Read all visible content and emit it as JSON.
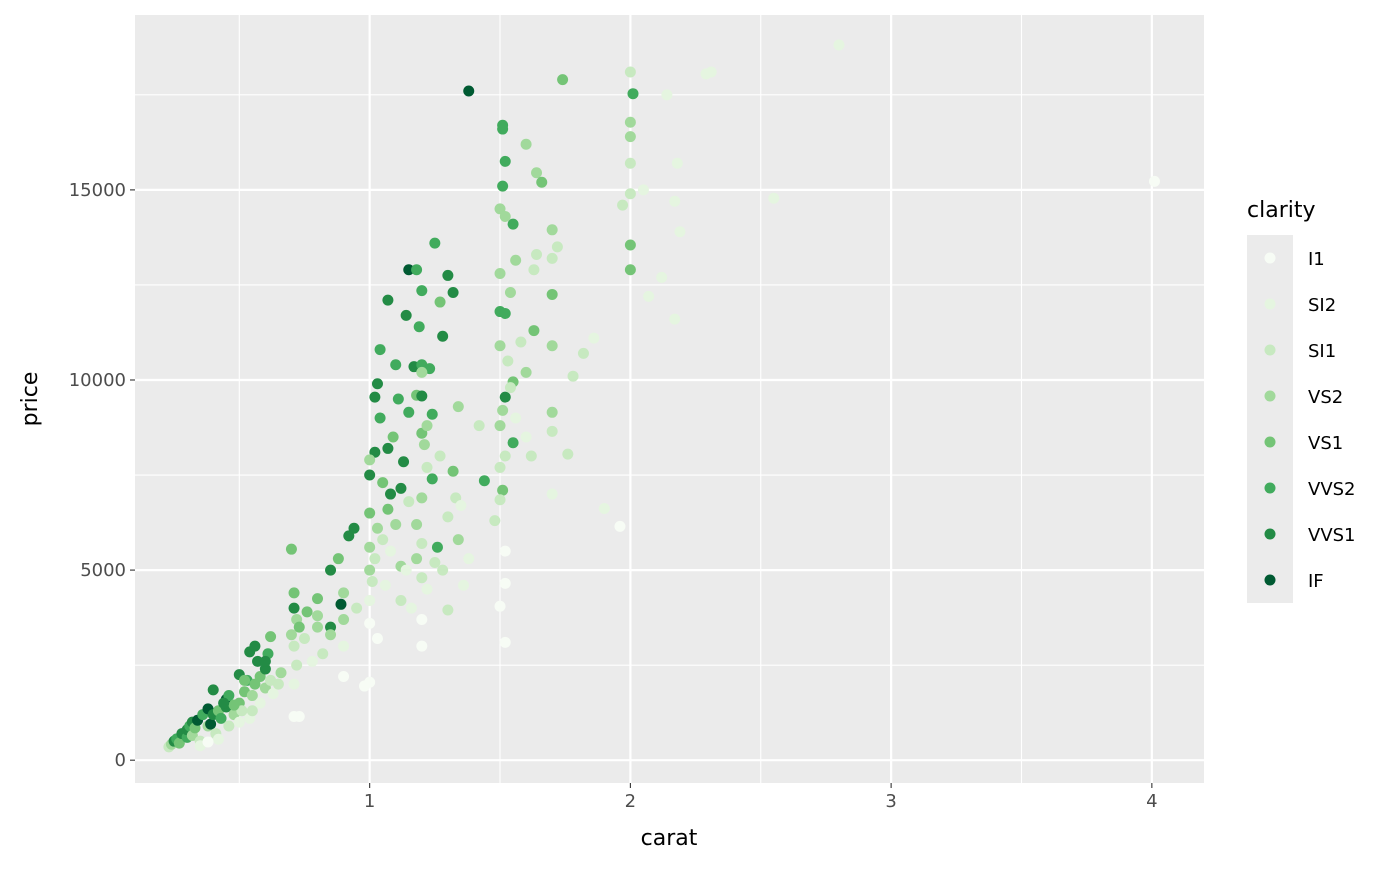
{
  "chart_data": {
    "type": "scatter",
    "xlabel": "carat",
    "ylabel": "price",
    "xlim": [
      0.1,
      4.2
    ],
    "ylim": [
      -600,
      19600
    ],
    "x_ticks": [
      1,
      2,
      3,
      4
    ],
    "x_tick_labels": [
      "1",
      "2",
      "3",
      "4"
    ],
    "y_ticks": [
      0,
      5000,
      10000,
      15000
    ],
    "y_tick_labels": [
      "0",
      "5000",
      "10000",
      "15000"
    ],
    "x_minor": [
      0.5,
      1.5,
      2.5,
      3.5
    ],
    "y_minor": [
      2500,
      7500,
      12500,
      17500
    ],
    "grid": true,
    "panel_background": "#EBEBEB",
    "legend": {
      "title": "clarity",
      "placement": "right",
      "entries": [
        "I1",
        "SI2",
        "SI1",
        "VS2",
        "VS1",
        "VVS2",
        "VVS1",
        "IF"
      ]
    },
    "colors": {
      "I1": "#F7FCF5",
      "SI2": "#E5F5E0",
      "SI1": "#C7E9C0",
      "VS2": "#A1D99B",
      "VS1": "#74C476",
      "VVS2": "#41AB5D",
      "VVS1": "#238B45",
      "IF": "#005A32"
    },
    "points": [
      [
        4.01,
        15223,
        "I1"
      ],
      [
        2.8,
        18810,
        "SI2"
      ],
      [
        1.38,
        17600,
        "IF"
      ],
      [
        1.74,
        17900,
        "VS1"
      ],
      [
        2.55,
        14780,
        "SI2"
      ],
      [
        1.96,
        6150,
        "I1"
      ],
      [
        1.9,
        6620,
        "SI2"
      ],
      [
        2.0,
        18100,
        "SI1"
      ],
      [
        2.01,
        17530,
        "VVS2"
      ],
      [
        2.29,
        18050,
        "SI2"
      ],
      [
        2.31,
        18100,
        "SI2"
      ],
      [
        2.14,
        17500,
        "SI2"
      ],
      [
        2.0,
        16780,
        "VS2"
      ],
      [
        2.0,
        16400,
        "VS2"
      ],
      [
        2.0,
        15700,
        "SI1"
      ],
      [
        2.0,
        14900,
        "SI1"
      ],
      [
        1.97,
        14600,
        "SI1"
      ],
      [
        2.05,
        15000,
        "SI2"
      ],
      [
        2.17,
        14700,
        "SI2"
      ],
      [
        2.18,
        15700,
        "SI2"
      ],
      [
        2.19,
        13900,
        "SI2"
      ],
      [
        2.0,
        13550,
        "VS1"
      ],
      [
        2.0,
        12900,
        "VS1"
      ],
      [
        2.07,
        12200,
        "SI2"
      ],
      [
        2.12,
        12700,
        "SI2"
      ],
      [
        2.17,
        11600,
        "SI2"
      ],
      [
        1.51,
        16700,
        "VVS2"
      ],
      [
        1.51,
        16600,
        "VVS2"
      ],
      [
        1.52,
        15750,
        "VVS2"
      ],
      [
        1.51,
        15100,
        "VVS2"
      ],
      [
        1.6,
        16200,
        "VS2"
      ],
      [
        1.64,
        15450,
        "VS2"
      ],
      [
        1.66,
        15200,
        "VS1"
      ],
      [
        1.5,
        14500,
        "VS2"
      ],
      [
        1.55,
        14100,
        "VVS2"
      ],
      [
        1.7,
        13950,
        "VS2"
      ],
      [
        1.72,
        13500,
        "SI1"
      ],
      [
        1.7,
        13200,
        "SI1"
      ],
      [
        1.56,
        13150,
        "VS2"
      ],
      [
        1.64,
        13300,
        "SI1"
      ],
      [
        1.63,
        12900,
        "SI1"
      ],
      [
        1.54,
        12300,
        "VS2"
      ],
      [
        1.7,
        12250,
        "VS1"
      ],
      [
        1.5,
        11800,
        "VVS2"
      ],
      [
        1.52,
        11750,
        "VVS2"
      ],
      [
        1.63,
        11300,
        "VS1"
      ],
      [
        1.7,
        10900,
        "VS2"
      ],
      [
        1.58,
        11000,
        "SI1"
      ],
      [
        1.6,
        10200,
        "VS2"
      ],
      [
        1.55,
        9950,
        "VS1"
      ],
      [
        1.52,
        9550,
        "VVS1"
      ],
      [
        1.7,
        9150,
        "VS2"
      ],
      [
        1.7,
        8650,
        "SI1"
      ],
      [
        1.55,
        8350,
        "VVS2"
      ],
      [
        1.52,
        8000,
        "SI1"
      ],
      [
        1.51,
        7100,
        "VS1"
      ],
      [
        1.5,
        6850,
        "SI1"
      ],
      [
        1.52,
        5500,
        "I1"
      ],
      [
        1.52,
        4650,
        "I1"
      ],
      [
        1.5,
        4050,
        "I1"
      ],
      [
        1.52,
        3100,
        "I1"
      ],
      [
        1.44,
        7350,
        "VVS2"
      ],
      [
        1.42,
        8800,
        "SI1"
      ],
      [
        1.34,
        9300,
        "VS2"
      ],
      [
        1.82,
        10700,
        "SI1"
      ],
      [
        1.78,
        10100,
        "SI1"
      ],
      [
        1.86,
        11100,
        "SI2"
      ],
      [
        1.7,
        7000,
        "SI2"
      ],
      [
        1.76,
        8050,
        "SI1"
      ],
      [
        1.62,
        8000,
        "SI1"
      ],
      [
        1.48,
        6300,
        "SI1"
      ],
      [
        1.5,
        10900,
        "VS2"
      ],
      [
        1.5,
        12800,
        "VS2"
      ],
      [
        1.51,
        9200,
        "VS2"
      ],
      [
        1.5,
        8800,
        "VS2"
      ],
      [
        1.53,
        10500,
        "SI1"
      ],
      [
        1.52,
        14300,
        "VS2"
      ],
      [
        1.54,
        9800,
        "SI1"
      ],
      [
        1.5,
        7700,
        "SI1"
      ],
      [
        1.56,
        9000,
        "SI2"
      ],
      [
        1.6,
        8500,
        "SI2"
      ],
      [
        1.25,
        13600,
        "VVS2"
      ],
      [
        1.15,
        12900,
        "IF"
      ],
      [
        1.18,
        12900,
        "VVS2"
      ],
      [
        1.3,
        12750,
        "VVS1"
      ],
      [
        1.07,
        12100,
        "VVS1"
      ],
      [
        1.2,
        12350,
        "VVS2"
      ],
      [
        1.32,
        12300,
        "VVS1"
      ],
      [
        1.27,
        12050,
        "VS1"
      ],
      [
        1.14,
        11700,
        "VVS1"
      ],
      [
        1.19,
        11400,
        "VVS2"
      ],
      [
        1.28,
        11150,
        "VVS1"
      ],
      [
        1.04,
        10800,
        "VVS2"
      ],
      [
        1.1,
        10400,
        "VVS2"
      ],
      [
        1.17,
        10350,
        "VVS1"
      ],
      [
        1.2,
        10400,
        "VVS2"
      ],
      [
        1.23,
        10300,
        "VVS2"
      ],
      [
        1.03,
        9900,
        "VVS1"
      ],
      [
        1.02,
        9550,
        "VVS1"
      ],
      [
        1.11,
        9500,
        "VVS2"
      ],
      [
        1.18,
        9600,
        "VS1"
      ],
      [
        1.2,
        9580,
        "VVS1"
      ],
      [
        1.15,
        9150,
        "VVS2"
      ],
      [
        1.24,
        9100,
        "VVS2"
      ],
      [
        1.04,
        9000,
        "VVS2"
      ],
      [
        1.2,
        8600,
        "VS1"
      ],
      [
        1.09,
        8500,
        "VS1"
      ],
      [
        1.02,
        8100,
        "VVS1"
      ],
      [
        1.07,
        8200,
        "VVS1"
      ],
      [
        1.13,
        7850,
        "VVS1"
      ],
      [
        1.0,
        7900,
        "VS2"
      ],
      [
        1.0,
        7500,
        "VVS1"
      ],
      [
        1.05,
        7300,
        "VS1"
      ],
      [
        1.08,
        7000,
        "VVS1"
      ],
      [
        1.12,
        7150,
        "VVS1"
      ],
      [
        1.22,
        7700,
        "SI1"
      ],
      [
        1.24,
        7400,
        "VVS2"
      ],
      [
        1.27,
        8000,
        "SI1"
      ],
      [
        1.32,
        7600,
        "VS1"
      ],
      [
        1.33,
        6900,
        "SI1"
      ],
      [
        1.26,
        5600,
        "VVS2"
      ],
      [
        1.28,
        5000,
        "SI1"
      ],
      [
        1.34,
        5800,
        "VS2"
      ],
      [
        1.18,
        5300,
        "VS2"
      ],
      [
        1.2,
        4800,
        "SI1"
      ],
      [
        1.12,
        5100,
        "VS2"
      ],
      [
        0.7,
        5550,
        "VS1"
      ],
      [
        0.71,
        4400,
        "VS1"
      ],
      [
        0.71,
        4000,
        "VVS1"
      ],
      [
        0.72,
        3700,
        "VS2"
      ],
      [
        0.73,
        3500,
        "VS1"
      ],
      [
        0.7,
        3300,
        "VS2"
      ],
      [
        0.71,
        3000,
        "SI1"
      ],
      [
        0.72,
        2500,
        "SI1"
      ],
      [
        0.71,
        2000,
        "SI2"
      ],
      [
        0.73,
        1150,
        "I1"
      ],
      [
        0.71,
        1150,
        "I1"
      ],
      [
        0.76,
        3900,
        "VS1"
      ],
      [
        0.8,
        4250,
        "VS1"
      ],
      [
        0.85,
        5000,
        "VVS1"
      ],
      [
        0.88,
        5300,
        "VS1"
      ],
      [
        0.92,
        5900,
        "VVS1"
      ],
      [
        0.94,
        6100,
        "VVS1"
      ],
      [
        0.89,
        4100,
        "IF"
      ],
      [
        0.85,
        3500,
        "VVS1"
      ],
      [
        0.9,
        2200,
        "I1"
      ],
      [
        0.98,
        1950,
        "I1"
      ],
      [
        1.0,
        2050,
        "I1"
      ],
      [
        1.0,
        3600,
        "I1"
      ],
      [
        1.03,
        3200,
        "I1"
      ],
      [
        1.2,
        3000,
        "I1"
      ],
      [
        1.2,
        3700,
        "I1"
      ],
      [
        0.75,
        3200,
        "SI1"
      ],
      [
        0.8,
        3500,
        "VS2"
      ],
      [
        0.82,
        2800,
        "SI1"
      ],
      [
        0.85,
        3300,
        "VS2"
      ],
      [
        0.9,
        3700,
        "VS2"
      ],
      [
        0.9,
        4400,
        "VS2"
      ],
      [
        0.9,
        3000,
        "SI2"
      ],
      [
        0.95,
        4000,
        "SI1"
      ],
      [
        1.0,
        4200,
        "SI2"
      ],
      [
        1.0,
        5000,
        "VS2"
      ],
      [
        1.0,
        5600,
        "VS2"
      ],
      [
        1.0,
        6500,
        "VS1"
      ],
      [
        1.01,
        4700,
        "SI1"
      ],
      [
        1.02,
        5300,
        "SI1"
      ],
      [
        1.03,
        6100,
        "VS2"
      ],
      [
        1.05,
        5800,
        "SI1"
      ],
      [
        1.06,
        4600,
        "SI2"
      ],
      [
        1.07,
        6600,
        "VS1"
      ],
      [
        1.08,
        5500,
        "SI2"
      ],
      [
        1.1,
        6200,
        "VS2"
      ],
      [
        1.12,
        4200,
        "SI1"
      ],
      [
        1.14,
        5000,
        "SI2"
      ],
      [
        1.15,
        6800,
        "SI1"
      ],
      [
        1.16,
        4000,
        "SI2"
      ],
      [
        1.18,
        6200,
        "VS2"
      ],
      [
        1.2,
        5700,
        "SI1"
      ],
      [
        1.2,
        6900,
        "VS2"
      ],
      [
        1.21,
        8300,
        "VS2"
      ],
      [
        1.22,
        4500,
        "SI2"
      ],
      [
        1.25,
        5200,
        "SI1"
      ],
      [
        1.3,
        6400,
        "SI1"
      ],
      [
        1.3,
        3950,
        "SI1"
      ],
      [
        1.35,
        6700,
        "SI2"
      ],
      [
        1.36,
        4600,
        "SI2"
      ],
      [
        1.2,
        10200,
        "VS2"
      ],
      [
        1.22,
        8800,
        "VS2"
      ],
      [
        1.38,
        5300,
        "SI2"
      ],
      [
        0.78,
        2600,
        "SI2"
      ],
      [
        0.8,
        3800,
        "VS2"
      ],
      [
        0.23,
        350,
        "SI1"
      ],
      [
        0.24,
        420,
        "VS2"
      ],
      [
        0.25,
        500,
        "VVS1"
      ],
      [
        0.26,
        560,
        "VVS2"
      ],
      [
        0.27,
        450,
        "VS1"
      ],
      [
        0.28,
        700,
        "VVS1"
      ],
      [
        0.3,
        600,
        "VVS2"
      ],
      [
        0.3,
        800,
        "VVS1"
      ],
      [
        0.31,
        900,
        "VVS2"
      ],
      [
        0.32,
        1000,
        "VVS1"
      ],
      [
        0.32,
        650,
        "VS2"
      ],
      [
        0.33,
        850,
        "VS1"
      ],
      [
        0.34,
        1050,
        "IF"
      ],
      [
        0.35,
        500,
        "SI1"
      ],
      [
        0.36,
        1200,
        "VVS2"
      ],
      [
        0.38,
        1350,
        "IF"
      ],
      [
        0.38,
        900,
        "VS2"
      ],
      [
        0.39,
        950,
        "IF"
      ],
      [
        0.4,
        1200,
        "VVS1"
      ],
      [
        0.4,
        1850,
        "VVS1"
      ],
      [
        0.41,
        700,
        "SI1"
      ],
      [
        0.42,
        1300,
        "VS1"
      ],
      [
        0.43,
        1100,
        "VVS2"
      ],
      [
        0.45,
        1400,
        "VVS1"
      ],
      [
        0.45,
        1600,
        "IF"
      ],
      [
        0.46,
        900,
        "SI1"
      ],
      [
        0.48,
        1200,
        "VS2"
      ],
      [
        0.5,
        1500,
        "VS1"
      ],
      [
        0.5,
        2250,
        "VVS1"
      ],
      [
        0.51,
        1300,
        "SI1"
      ],
      [
        0.52,
        1800,
        "VS1"
      ],
      [
        0.53,
        2100,
        "VVS2"
      ],
      [
        0.54,
        2850,
        "VVS1"
      ],
      [
        0.55,
        1700,
        "VS2"
      ],
      [
        0.56,
        2000,
        "VS1"
      ],
      [
        0.56,
        3000,
        "VVS1"
      ],
      [
        0.57,
        2600,
        "VVS1"
      ],
      [
        0.58,
        1500,
        "SI2"
      ],
      [
        0.58,
        2200,
        "VS1"
      ],
      [
        0.6,
        2400,
        "VVS1"
      ],
      [
        0.6,
        1900,
        "VS2"
      ],
      [
        0.61,
        2800,
        "VVS2"
      ],
      [
        0.62,
        3250,
        "VS1"
      ],
      [
        0.62,
        2100,
        "SI1"
      ],
      [
        0.63,
        1750,
        "SI2"
      ],
      [
        0.65,
        2000,
        "SI1"
      ],
      [
        0.66,
        2300,
        "VS2"
      ],
      [
        0.54,
        1100,
        "SI2"
      ],
      [
        0.5,
        1000,
        "SI2"
      ],
      [
        0.35,
        380,
        "SI2"
      ],
      [
        0.42,
        550,
        "SI2"
      ],
      [
        0.38,
        480,
        "I1"
      ],
      [
        0.55,
        1300,
        "SI1"
      ],
      [
        0.46,
        1700,
        "VVS2"
      ],
      [
        0.48,
        1450,
        "VS1"
      ],
      [
        0.6,
        2600,
        "VVS1"
      ],
      [
        0.44,
        1500,
        "VVS1"
      ],
      [
        0.52,
        2100,
        "VS1"
      ]
    ]
  }
}
